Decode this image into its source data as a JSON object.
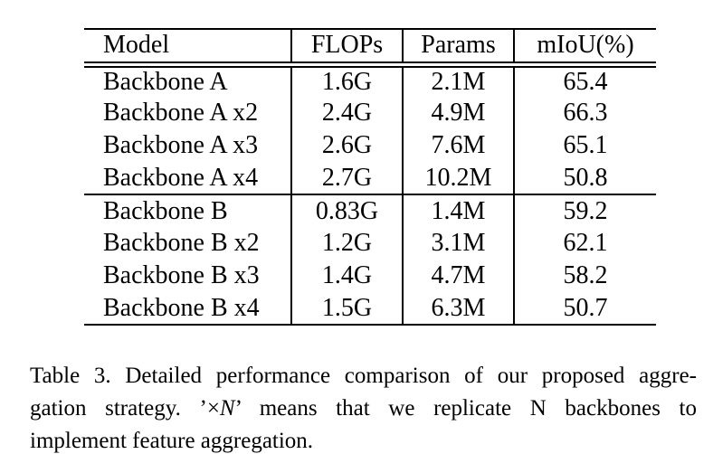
{
  "colors": {
    "text": "#000000",
    "background": "#ffffff",
    "rule": "#000000"
  },
  "table": {
    "headers": [
      "Model",
      "FLOPs",
      "Params",
      "mIoU(%)"
    ],
    "rows": [
      {
        "model": "Backbone A",
        "flops": "1.6G",
        "params": "2.1M",
        "miou": "65.4"
      },
      {
        "model": "Backbone A x2",
        "flops": "2.4G",
        "params": "4.9M",
        "miou": "66.3"
      },
      {
        "model": "Backbone A x3",
        "flops": "2.6G",
        "params": "7.6M",
        "miou": "65.1"
      },
      {
        "model": "Backbone A x4",
        "flops": "2.7G",
        "params": "10.2M",
        "miou": "50.8"
      },
      {
        "model": "Backbone B",
        "flops": "0.83G",
        "params": "1.4M",
        "miou": "59.2"
      },
      {
        "model": "Backbone B x2",
        "flops": "1.2G",
        "params": "3.1M",
        "miou": "62.1"
      },
      {
        "model": "Backbone B x3",
        "flops": "1.4G",
        "params": "4.7M",
        "miou": "58.2"
      },
      {
        "model": "Backbone B x4",
        "flops": "1.5G",
        "params": "6.3M",
        "miou": "50.7"
      }
    ]
  },
  "caption": {
    "line1": "Table 3. Detailed performance comparison of our proposed aggre-",
    "line2_pre": "gation strategy. ’×",
    "line2_n": "N",
    "line2_post": "’ means that we replicate N backbones to",
    "line3": "implement feature aggregation."
  }
}
